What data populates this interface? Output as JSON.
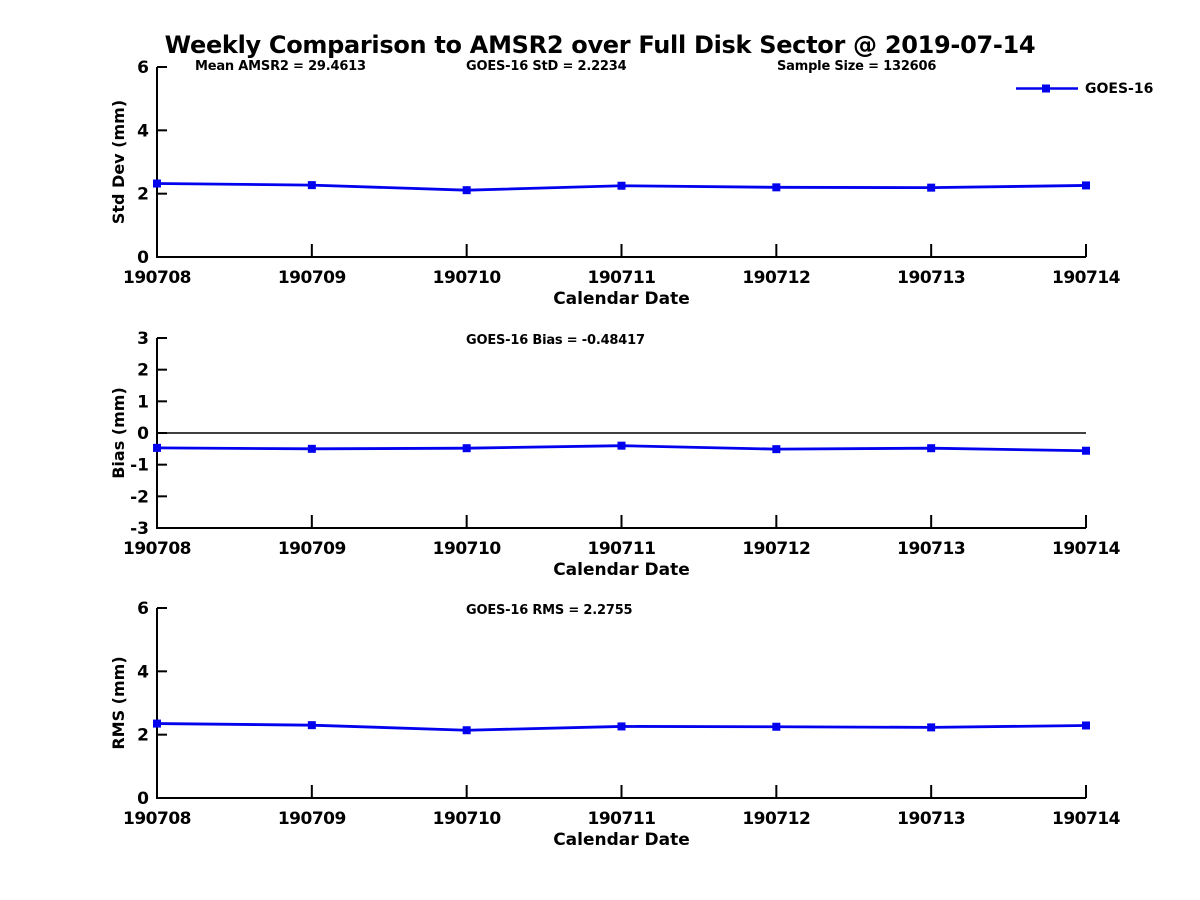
{
  "title": "Weekly Comparison to AMSR2 over Full Disk Sector @ 2019-07-14",
  "header_stats": {
    "mean_amsr2": "Mean AMSR2 = 29.4613",
    "goes16_std": "GOES-16 StD = 2.2234",
    "sample_size": "Sample Size = 132606"
  },
  "legend": {
    "label": "GOES-16",
    "position": "top-right"
  },
  "colors": {
    "line": "#0202ee",
    "marker": "#0202ee",
    "axis": "#000000",
    "zero_line": "#000000",
    "background": "#ffffff",
    "text": "#000000"
  },
  "chart_data": [
    {
      "type": "line",
      "name": "stddev",
      "title": "",
      "series_name": "GOES-16",
      "categories": [
        "190708",
        "190709",
        "190710",
        "190711",
        "190712",
        "190713",
        "190714"
      ],
      "values": [
        2.32,
        2.27,
        2.11,
        2.25,
        2.2,
        2.19,
        2.26
      ],
      "xlabel": "Calendar Date",
      "ylabel": "Std Dev (mm)",
      "ylim": [
        0,
        6
      ],
      "yticks": [
        0,
        2,
        4,
        6
      ],
      "zero_line": false,
      "grid": false,
      "marker": "square"
    },
    {
      "type": "line",
      "name": "bias",
      "title": "GOES-16 Bias  = -0.48417",
      "series_name": "GOES-16",
      "categories": [
        "190708",
        "190709",
        "190710",
        "190711",
        "190712",
        "190713",
        "190714"
      ],
      "values": [
        -0.47,
        -0.5,
        -0.48,
        -0.4,
        -0.51,
        -0.48,
        -0.56
      ],
      "xlabel": "Calendar Date",
      "ylabel": "Bias (mm)",
      "ylim": [
        -3,
        3
      ],
      "yticks": [
        -3,
        -2,
        -1,
        0,
        1,
        2,
        3
      ],
      "zero_line": true,
      "grid": false,
      "marker": "square"
    },
    {
      "type": "line",
      "name": "rms",
      "title": "GOES-16 RMS = 2.2755",
      "series_name": "GOES-16",
      "categories": [
        "190708",
        "190709",
        "190710",
        "190711",
        "190712",
        "190713",
        "190714"
      ],
      "values": [
        2.35,
        2.3,
        2.14,
        2.26,
        2.25,
        2.23,
        2.29
      ],
      "xlabel": "Calendar Date",
      "ylabel": "RMS (mm)",
      "ylim": [
        0,
        6
      ],
      "yticks": [
        0,
        2,
        4,
        6
      ],
      "zero_line": false,
      "grid": false,
      "marker": "square"
    }
  ]
}
